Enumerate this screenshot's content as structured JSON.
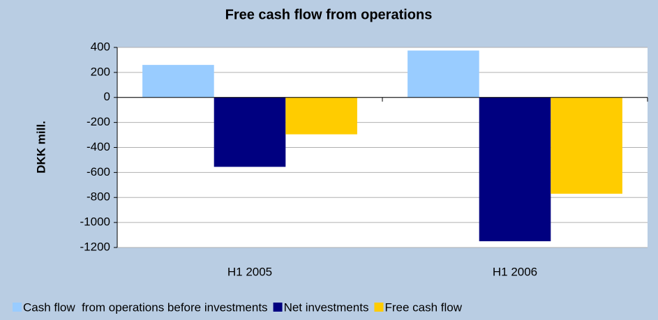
{
  "chart_data": {
    "type": "bar",
    "title": "Free cash flow from operations",
    "y_label": "DKK mill.",
    "categories": [
      "H1 2005",
      "H1 2006"
    ],
    "series": [
      {
        "name": "Cash flow  from operations before investments",
        "color": "#99ccff",
        "values": [
          260,
          375
        ]
      },
      {
        "name": "Net investments",
        "color": "#000080",
        "values": [
          -555,
          -1150
        ]
      },
      {
        "name": "Free cash flow",
        "color": "#ffcc00",
        "values": [
          -295,
          -770
        ]
      }
    ],
    "ylim": [
      -1200,
      400
    ],
    "yticks": [
      400,
      200,
      0,
      -200,
      -400,
      -600,
      -800,
      -1000,
      -1200
    ],
    "grid": true
  }
}
